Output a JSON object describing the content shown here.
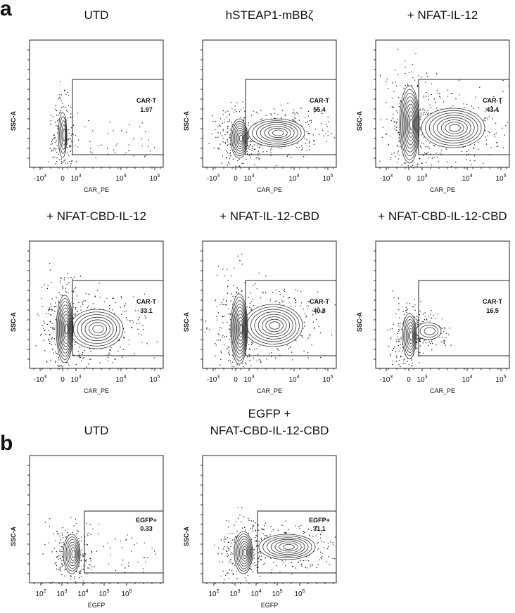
{
  "figure": {
    "panels": [
      {
        "label": "a",
        "plots": [
          {
            "title": [
              "UTD"
            ],
            "x_label": "CAR_PE",
            "y_label": "SSC-A",
            "gate_name": "CAR-T",
            "gate_value": "1.97",
            "x_ticks": [
              {
                "base": "-10",
                "exp": "3"
              },
              {
                "base": "0"
              },
              {
                "base": "10",
                "exp": "3"
              },
              {
                "base": "10",
                "exp": "4"
              },
              {
                "base": "10",
                "exp": "5"
              }
            ]
          },
          {
            "title": [
              "hSTEAP1-mBBζ"
            ],
            "x_label": "CAR_PE",
            "y_label": "SSC-A",
            "gate_name": "CAR-T",
            "gate_value": "55.4",
            "x_ticks": [
              {
                "base": "-10",
                "exp": "3"
              },
              {
                "base": "0"
              },
              {
                "base": "10",
                "exp": "3"
              },
              {
                "base": "10",
                "exp": "4"
              },
              {
                "base": "10",
                "exp": "5"
              }
            ]
          },
          {
            "title": [
              "+ NFAT-IL-12"
            ],
            "x_label": "CAR_PE",
            "y_label": "SSC-A",
            "gate_name": "CAR-T",
            "gate_value": "43.4",
            "x_ticks": [
              {
                "base": "-10",
                "exp": "3"
              },
              {
                "base": "0"
              },
              {
                "base": "10",
                "exp": "3"
              },
              {
                "base": "10",
                "exp": "4"
              },
              {
                "base": "10",
                "exp": "5"
              }
            ]
          },
          {
            "title": [
              "+ NFAT-CBD-IL-12"
            ],
            "x_label": "CAR_PE",
            "y_label": "SSC-A",
            "gate_name": "CAR-T",
            "gate_value": "33.1",
            "x_ticks": [
              {
                "base": "-10",
                "exp": "3"
              },
              {
                "base": "0"
              },
              {
                "base": "10",
                "exp": "3"
              },
              {
                "base": "10",
                "exp": "4"
              },
              {
                "base": "10",
                "exp": "5"
              }
            ]
          },
          {
            "title": [
              "+ NFAT-IL-12-CBD"
            ],
            "x_label": "CAR_PE",
            "y_label": "SSC-A",
            "gate_name": "CAR-T",
            "gate_value": "40.8",
            "x_ticks": [
              {
                "base": "-10",
                "exp": "3"
              },
              {
                "base": "0"
              },
              {
                "base": "10",
                "exp": "3"
              },
              {
                "base": "10",
                "exp": "4"
              },
              {
                "base": "10",
                "exp": "5"
              }
            ]
          },
          {
            "title": [
              "+ NFAT-CBD-IL-12-CBD"
            ],
            "x_label": "CAR_PE",
            "y_label": "SSC-A",
            "gate_name": "CAR-T",
            "gate_value": "16.5",
            "x_ticks": [
              {
                "base": "-10",
                "exp": "3"
              },
              {
                "base": "0"
              },
              {
                "base": "10",
                "exp": "3"
              },
              {
                "base": "10",
                "exp": "4"
              },
              {
                "base": "10",
                "exp": "5"
              }
            ]
          }
        ]
      },
      {
        "label": "b",
        "plots": [
          {
            "title": [
              "UTD"
            ],
            "x_label": "EGFP",
            "y_label": "SSC-A",
            "gate_name": "EGFP+",
            "gate_value": "0.33",
            "x_ticks": [
              {
                "base": "10",
                "exp": "2"
              },
              {
                "base": "10",
                "exp": "3"
              },
              {
                "base": "10",
                "exp": "4"
              },
              {
                "base": "10",
                "exp": "5"
              },
              {
                "base": "10",
                "exp": "6"
              }
            ]
          },
          {
            "title": [
              "EGFP +",
              "NFAT-CBD-IL-12-CBD"
            ],
            "x_label": "EGFP",
            "y_label": "SSC-A",
            "gate_name": "EGFP+",
            "gate_value": "31.1",
            "x_ticks": [
              {
                "base": "10",
                "exp": "2"
              },
              {
                "base": "10",
                "exp": "3"
              },
              {
                "base": "10",
                "exp": "4"
              },
              {
                "base": "10",
                "exp": "5"
              },
              {
                "base": "10",
                "exp": "6"
              }
            ]
          }
        ]
      }
    ]
  }
}
